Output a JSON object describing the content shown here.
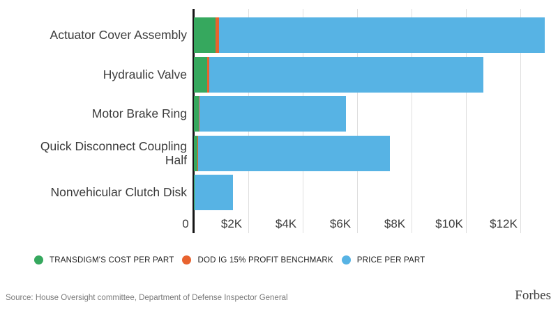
{
  "chart_data": {
    "type": "bar",
    "orientation": "horizontal",
    "title": "",
    "xlabel": "",
    "ylabel": "",
    "xmax": 13333,
    "grid": true,
    "legend_position": "bottom",
    "categories": [
      "Actuator Cover Assembly",
      "Hydraulic Valve",
      "Motor Brake Ring",
      "Quick Disconnect Coupling Half",
      "Nonvehicular Clutch Disk"
    ],
    "series": [
      {
        "key": "cost",
        "name": "TRANSDIGM'S COST PER PART",
        "color": "#36a85e",
        "values": [
          800,
          490,
          180,
          130,
          32
        ]
      },
      {
        "key": "benchmark",
        "name": "DOD IG 15% PROFIT BENCHMARK",
        "color": "#e8632f",
        "values": [
          920,
          565,
          207,
          150,
          37
        ]
      },
      {
        "key": "price",
        "name": "PRICE PER PART",
        "color": "#57b3e4",
        "values": [
          12900,
          10650,
          5600,
          7200,
          1443
        ]
      }
    ],
    "x_ticks": [
      {
        "value": 0,
        "label": "0"
      },
      {
        "value": 2000,
        "label": "$2K"
      },
      {
        "value": 4000,
        "label": "$4K"
      },
      {
        "value": 6000,
        "label": "$6K"
      },
      {
        "value": 8000,
        "label": "$8K"
      },
      {
        "value": 10000,
        "label": "$10K"
      },
      {
        "value": 12000,
        "label": "$12K"
      }
    ],
    "axis_color": "#151515",
    "gridline_color": "#dedede"
  },
  "footer": {
    "source": "Source: House Oversight committee, Department of Defense Inspector General",
    "brand": "Forbes"
  }
}
